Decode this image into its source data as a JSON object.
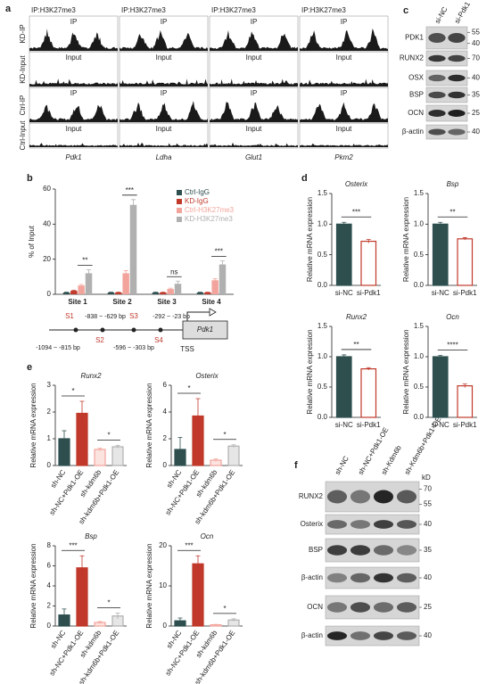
{
  "figure": {
    "panel_labels": [
      "a",
      "b",
      "c",
      "d",
      "e",
      "f"
    ]
  },
  "tracks": {
    "columns": [
      {
        "header": "IP:H3K27me3",
        "gene": "Pdk1"
      },
      {
        "header": "IP:H3K27me3",
        "gene": "Ldha"
      },
      {
        "header": "IP:H3K27me3",
        "gene": "Glut1"
      },
      {
        "header": "IP:H3K27me3",
        "gene": "Pkm2"
      }
    ],
    "rows": [
      "KD-IP",
      "KD-Input",
      "Ctrl-IP",
      "Ctrl-Input"
    ],
    "row_tags": [
      "IP",
      "Input",
      "IP",
      "Input"
    ]
  },
  "blot_c": {
    "lanes": [
      "si-NC",
      "si-Pdk1"
    ],
    "bands": [
      {
        "name": "PDK1",
        "markers": [
          55,
          40
        ]
      },
      {
        "name": "RUNX2",
        "markers": [
          70
        ]
      },
      {
        "name": "OSX",
        "markers": [
          40
        ]
      },
      {
        "name": "BSP",
        "markers": [
          35
        ]
      },
      {
        "name": "OCN",
        "markers": [
          25
        ]
      },
      {
        "name": "β-actin",
        "markers": [
          40
        ]
      }
    ]
  },
  "schematic": {
    "sites": [
      "S1",
      "S2",
      "S3",
      "S4"
    ],
    "ranges": [
      "-1094 ~ -815 bp",
      "-838 ~ -629 bp",
      "-596 ~ -303 bp",
      "-292 ~ -23 bp"
    ],
    "gene": "Pdk1",
    "tss": "TSS"
  },
  "blot_f": {
    "lanes": [
      "sh-NC",
      "sh-NC+Pdk1-OE",
      "sh-Kdm6b",
      "sh-Kdm6b+Pdk1-OE"
    ],
    "unit": "kD",
    "bands": [
      {
        "name": "RUNX2",
        "markers": [
          70,
          55
        ]
      },
      {
        "name": "Osterix",
        "markers": [
          40
        ]
      },
      {
        "name": "BSP",
        "markers": [
          35
        ]
      },
      {
        "name": "β-actin",
        "markers": [
          40
        ]
      },
      {
        "name": "OCN",
        "markers": [
          25
        ]
      },
      {
        "name": "β-actin",
        "markers": [
          40
        ]
      }
    ]
  },
  "chart_data": [
    {
      "type": "grouped_bar",
      "y_label": "% of Input",
      "categories": [
        "Site 1",
        "Site 2",
        "Site 3",
        "Site 4"
      ],
      "ylim": [
        0,
        60
      ],
      "yticks": [
        0,
        20,
        40,
        60
      ],
      "legend": "top-right",
      "series": [
        {
          "name": "Ctrl-IgG",
          "color": "#2f4f4f",
          "values": [
            1,
            1,
            1,
            1
          ],
          "errors": [
            0.2,
            0.2,
            0.2,
            0.2
          ]
        },
        {
          "name": "KD-IgG",
          "color": "#c0392b",
          "values": [
            2,
            1,
            1,
            1
          ],
          "errors": [
            0.3,
            0.2,
            0.2,
            0.2
          ]
        },
        {
          "name": "Ctrl-H3K27me3",
          "color": "#f2a49c",
          "values": [
            5,
            12,
            3,
            8
          ],
          "errors": [
            0.6,
            1.5,
            0.5,
            0.8
          ]
        },
        {
          "name": "KD-H3K27me3",
          "color": "#b0b0b0",
          "values": [
            12,
            51,
            6,
            17
          ],
          "errors": [
            2,
            3,
            1.5,
            2
          ]
        }
      ],
      "annotations": [
        "**",
        "***",
        "ns",
        "***"
      ]
    },
    {
      "type": "bar",
      "title": "Osterix",
      "y_label": "Relative mRNA expression",
      "categories": [
        "si-NC",
        "si-Pdk1"
      ],
      "values": [
        1.0,
        0.72
      ],
      "errors": [
        0.03,
        0.03
      ],
      "colors": [
        "#2f4f4f",
        "#c0392b"
      ],
      "fills": [
        "#2f4f4f",
        "#ffffff"
      ],
      "ylim": [
        0,
        1.5
      ],
      "yticks": [
        {
          "value": 0,
          "label": "0.0"
        },
        {
          "value": 0.5,
          "label": "0.5"
        },
        {
          "value": 1,
          "label": "1.0"
        },
        {
          "value": 1.5,
          "label": "1.5"
        }
      ],
      "annotations": [
        "***"
      ]
    },
    {
      "type": "bar",
      "title": "Bsp",
      "y_label": "Relative mRNA expression",
      "categories": [
        "si-NC",
        "si-Pdk1"
      ],
      "values": [
        1.0,
        0.76
      ],
      "errors": [
        0.03,
        0.02
      ],
      "colors": [
        "#2f4f4f",
        "#c0392b"
      ],
      "fills": [
        "#2f4f4f",
        "#ffffff"
      ],
      "ylim": [
        0,
        1.5
      ],
      "yticks": [
        {
          "value": 0,
          "label": "0.0"
        },
        {
          "value": 0.5,
          "label": "0.5"
        },
        {
          "value": 1,
          "label": "1.0"
        },
        {
          "value": 1.5,
          "label": "1.5"
        }
      ],
      "annotations": [
        "**"
      ]
    },
    {
      "type": "bar",
      "title": "Runx2",
      "y_label": "Relative mRNA expression",
      "categories": [
        "si-NC",
        "si-Pdk1"
      ],
      "values": [
        1.0,
        0.8
      ],
      "errors": [
        0.03,
        0.02
      ],
      "colors": [
        "#2f4f4f",
        "#c0392b"
      ],
      "fills": [
        "#2f4f4f",
        "#ffffff"
      ],
      "ylim": [
        0,
        1.5
      ],
      "yticks": [
        {
          "value": 0,
          "label": "0.0"
        },
        {
          "value": 0.5,
          "label": "0.5"
        },
        {
          "value": 1,
          "label": "1.0"
        },
        {
          "value": 1.5,
          "label": "1.5"
        }
      ],
      "annotations": [
        "**"
      ]
    },
    {
      "type": "bar",
      "title": "Ocn",
      "y_label": "Relative mRNA expression",
      "categories": [
        "si-NC",
        "si-Pdk1"
      ],
      "values": [
        1.0,
        0.52
      ],
      "errors": [
        0.02,
        0.03
      ],
      "colors": [
        "#2f4f4f",
        "#c0392b"
      ],
      "fills": [
        "#2f4f4f",
        "#ffffff"
      ],
      "ylim": [
        0,
        1.5
      ],
      "yticks": [
        {
          "value": 0,
          "label": "0.0"
        },
        {
          "value": 0.5,
          "label": "0.5"
        },
        {
          "value": 1,
          "label": "1.0"
        },
        {
          "value": 1.5,
          "label": "1.5"
        }
      ],
      "annotations": [
        "****"
      ]
    },
    {
      "type": "bar",
      "title": "Runx2",
      "y_label": "Relative mRNA expression",
      "categories": [
        "sh-NC",
        "sh-NC+Pdk1-OE",
        "sh-kdm6b",
        "sh-kdm6b+Pdk1-OE"
      ],
      "values": [
        1.0,
        1.95,
        0.6,
        0.7
      ],
      "errors": [
        0.3,
        0.45,
        0.05,
        0.05
      ],
      "colors": [
        "#2f4f4f",
        "#c0392b",
        "#f2a49c",
        "#b0b0b0"
      ],
      "fills": [
        "#2f4f4f",
        "#c0392b",
        "#fbe3e0",
        "#e6e6e6"
      ],
      "ylim": [
        0,
        3
      ],
      "yticks": [
        0,
        1,
        2,
        3
      ],
      "annotations": [
        "*",
        "*"
      ]
    },
    {
      "type": "bar",
      "title": "Osterix",
      "y_label": "Relative mRNA expression",
      "categories": [
        "sh-NC",
        "sh-NC+Pdk1-OE",
        "sh-kdm6b",
        "sh-kdm6b+Pdk1-OE"
      ],
      "values": [
        1.2,
        3.7,
        0.4,
        1.45
      ],
      "errors": [
        0.9,
        1.3,
        0.1,
        0.1
      ],
      "colors": [
        "#2f4f4f",
        "#c0392b",
        "#f2a49c",
        "#b0b0b0"
      ],
      "fills": [
        "#2f4f4f",
        "#c0392b",
        "#fbe3e0",
        "#e6e6e6"
      ],
      "ylim": [
        0,
        6
      ],
      "yticks": [
        0,
        2,
        4,
        6
      ],
      "annotations": [
        "*",
        "*"
      ]
    },
    {
      "type": "bar",
      "title": "Bsp",
      "y_label": "Relative mRNA expression",
      "categories": [
        "sh-NC",
        "sh-NC+Pdk1-OE",
        "sh-kdm6b",
        "sh-kdm6b+Pdk1-OE"
      ],
      "values": [
        1.1,
        5.8,
        0.35,
        1.0
      ],
      "errors": [
        0.6,
        1.2,
        0.1,
        0.3
      ],
      "colors": [
        "#2f4f4f",
        "#c0392b",
        "#f2a49c",
        "#b0b0b0"
      ],
      "fills": [
        "#2f4f4f",
        "#c0392b",
        "#fbe3e0",
        "#e6e6e6"
      ],
      "ylim": [
        0,
        8
      ],
      "yticks": [
        0,
        2,
        4,
        6,
        8
      ],
      "annotations": [
        "***",
        "*"
      ]
    },
    {
      "type": "bar",
      "title": "Ocn",
      "y_label": "Relative mRNA expression",
      "categories": [
        "sh-NC",
        "sh-NC+Pdk1-OE",
        "sh-kdm6b",
        "sh-kdm6b+Pdk1-OE"
      ],
      "values": [
        1.3,
        15.5,
        0.3,
        1.5
      ],
      "errors": [
        0.7,
        2.0,
        0.1,
        0.3
      ],
      "colors": [
        "#2f4f4f",
        "#c0392b",
        "#f2a49c",
        "#b0b0b0"
      ],
      "fills": [
        "#2f4f4f",
        "#c0392b",
        "#fbe3e0",
        "#e6e6e6"
      ],
      "ylim": [
        0,
        20
      ],
      "yticks": [
        0,
        10,
        20
      ],
      "annotations": [
        "***",
        "*"
      ]
    }
  ]
}
